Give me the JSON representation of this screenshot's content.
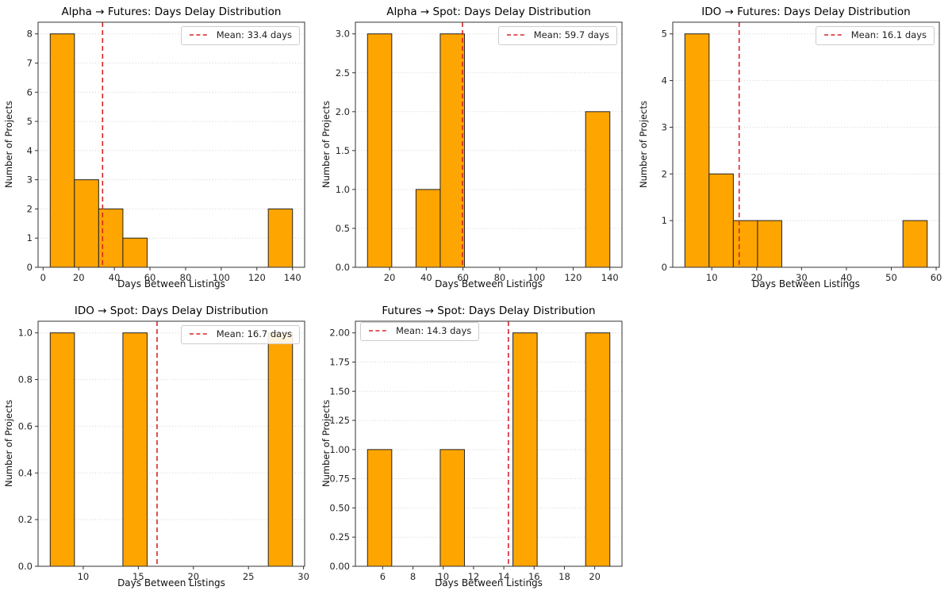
{
  "figure": {
    "background": "#ffffff",
    "bar_color": "#FFA500",
    "bar_edge_color": "#222222",
    "mean_line_color": "#d62728",
    "grid_color": "#cfcfcf",
    "axis_color": "#333333",
    "tick_text_color": "#262626"
  },
  "chart_data": [
    {
      "type": "bar",
      "subtype": "histogram",
      "title": "Alpha → Futures: Days Delay Distribution",
      "xlabel": "Days Between Listings",
      "ylabel": "Number of Projects",
      "legend_label": "Mean: 33.4 days",
      "legend_position": "top-right",
      "mean_days": 33.4,
      "xlim": [
        -2.8,
        146.8
      ],
      "ylim": [
        0,
        8.4
      ],
      "xticks": [
        [
          0,
          "0"
        ],
        [
          20,
          "20"
        ],
        [
          40,
          "40"
        ],
        [
          60,
          "60"
        ],
        [
          80,
          "80"
        ],
        [
          100,
          "100"
        ],
        [
          120,
          "120"
        ],
        [
          140,
          "140"
        ]
      ],
      "yticks": [
        [
          0,
          "0"
        ],
        [
          1,
          "1"
        ],
        [
          2,
          "2"
        ],
        [
          3,
          "3"
        ],
        [
          4,
          "4"
        ],
        [
          5,
          "5"
        ],
        [
          6,
          "6"
        ],
        [
          7,
          "7"
        ],
        [
          8,
          "8"
        ]
      ],
      "bars": [
        {
          "from": 4,
          "to": 17.6,
          "count": 8
        },
        {
          "from": 17.6,
          "to": 31.2,
          "count": 3
        },
        {
          "from": 31.2,
          "to": 44.8,
          "count": 2
        },
        {
          "from": 44.8,
          "to": 58.4,
          "count": 1
        },
        {
          "from": 126.4,
          "to": 140,
          "count": 2
        }
      ]
    },
    {
      "type": "bar",
      "subtype": "histogram",
      "title": "Alpha → Spot: Days Delay Distribution",
      "xlabel": "Days Between Listings",
      "ylabel": "Number of Projects",
      "legend_label": "Mean: 59.7 days",
      "legend_position": "top-right",
      "mean_days": 59.7,
      "xlim": [
        1.4,
        146.6
      ],
      "ylim": [
        0,
        3.15
      ],
      "xticks": [
        [
          20,
          "20"
        ],
        [
          40,
          "40"
        ],
        [
          60,
          "60"
        ],
        [
          80,
          "80"
        ],
        [
          100,
          "100"
        ],
        [
          120,
          "120"
        ],
        [
          140,
          "140"
        ]
      ],
      "yticks": [
        [
          0,
          "0.0"
        ],
        [
          0.5,
          "0.5"
        ],
        [
          1,
          "1.0"
        ],
        [
          1.5,
          "1.5"
        ],
        [
          2,
          "2.0"
        ],
        [
          2.5,
          "2.5"
        ],
        [
          3,
          "3.0"
        ]
      ],
      "bars": [
        {
          "from": 8,
          "to": 21.2,
          "count": 3
        },
        {
          "from": 34.4,
          "to": 47.6,
          "count": 1
        },
        {
          "from": 47.6,
          "to": 60.8,
          "count": 3
        },
        {
          "from": 126.8,
          "to": 140,
          "count": 2
        }
      ]
    },
    {
      "type": "bar",
      "subtype": "histogram",
      "title": "IDO → Futures: Days Delay Distribution",
      "xlabel": "Days Between Listings",
      "ylabel": "Number of Projects",
      "legend_label": "Mean: 16.1 days",
      "legend_position": "top-right",
      "mean_days": 16.1,
      "xlim": [
        1.3,
        60.7
      ],
      "ylim": [
        0,
        5.25
      ],
      "xticks": [
        [
          10,
          "10"
        ],
        [
          20,
          "20"
        ],
        [
          30,
          "30"
        ],
        [
          40,
          "40"
        ],
        [
          50,
          "50"
        ],
        [
          60,
          "60"
        ]
      ],
      "yticks": [
        [
          0,
          "0"
        ],
        [
          1,
          "1"
        ],
        [
          2,
          "2"
        ],
        [
          3,
          "3"
        ],
        [
          4,
          "4"
        ],
        [
          5,
          "5"
        ]
      ],
      "bars": [
        {
          "from": 4,
          "to": 9.4,
          "count": 5
        },
        {
          "from": 9.4,
          "to": 14.8,
          "count": 2
        },
        {
          "from": 14.8,
          "to": 20.2,
          "count": 1
        },
        {
          "from": 20.2,
          "to": 25.6,
          "count": 1
        },
        {
          "from": 52.6,
          "to": 58,
          "count": 1
        }
      ]
    },
    {
      "type": "bar",
      "subtype": "histogram",
      "title": "IDO → Spot: Days Delay Distribution",
      "xlabel": "Days Between Listings",
      "ylabel": "Number of Projects",
      "legend_label": "Mean: 16.7 days",
      "legend_position": "top-right",
      "mean_days": 16.7,
      "xlim": [
        5.9,
        30.1
      ],
      "ylim": [
        0,
        1.05
      ],
      "xticks": [
        [
          10,
          "10"
        ],
        [
          15,
          "15"
        ],
        [
          20,
          "20"
        ],
        [
          25,
          "25"
        ],
        [
          30,
          "30"
        ]
      ],
      "yticks": [
        [
          0,
          "0.0"
        ],
        [
          0.2,
          "0.2"
        ],
        [
          0.4,
          "0.4"
        ],
        [
          0.6,
          "0.6"
        ],
        [
          0.8,
          "0.8"
        ],
        [
          1,
          "1.0"
        ]
      ],
      "bars": [
        {
          "from": 7,
          "to": 9.2,
          "count": 1
        },
        {
          "from": 13.6,
          "to": 15.8,
          "count": 1
        },
        {
          "from": 26.8,
          "to": 29,
          "count": 1
        }
      ]
    },
    {
      "type": "bar",
      "subtype": "histogram",
      "title": "Futures → Spot: Days Delay Distribution",
      "xlabel": "Days Between Listings",
      "ylabel": "Number of Projects",
      "legend_label": "Mean: 14.3 days",
      "legend_position": "top-left",
      "mean_days": 14.3,
      "xlim": [
        4.2,
        21.8
      ],
      "ylim": [
        0,
        2.1
      ],
      "xticks": [
        [
          6,
          "6"
        ],
        [
          8,
          "8"
        ],
        [
          10,
          "10"
        ],
        [
          12,
          "12"
        ],
        [
          14,
          "14"
        ],
        [
          16,
          "16"
        ],
        [
          18,
          "18"
        ],
        [
          20,
          "20"
        ]
      ],
      "yticks": [
        [
          0,
          "0.00"
        ],
        [
          0.25,
          "0.25"
        ],
        [
          0.5,
          "0.50"
        ],
        [
          0.75,
          "0.75"
        ],
        [
          1,
          "1.00"
        ],
        [
          1.25,
          "1.25"
        ],
        [
          1.5,
          "1.50"
        ],
        [
          1.75,
          "1.75"
        ],
        [
          2,
          "2.00"
        ]
      ],
      "bars": [
        {
          "from": 5,
          "to": 6.6,
          "count": 1
        },
        {
          "from": 9.8,
          "to": 11.4,
          "count": 1
        },
        {
          "from": 14.6,
          "to": 16.2,
          "count": 2
        },
        {
          "from": 19.4,
          "to": 21,
          "count": 2
        }
      ]
    }
  ]
}
